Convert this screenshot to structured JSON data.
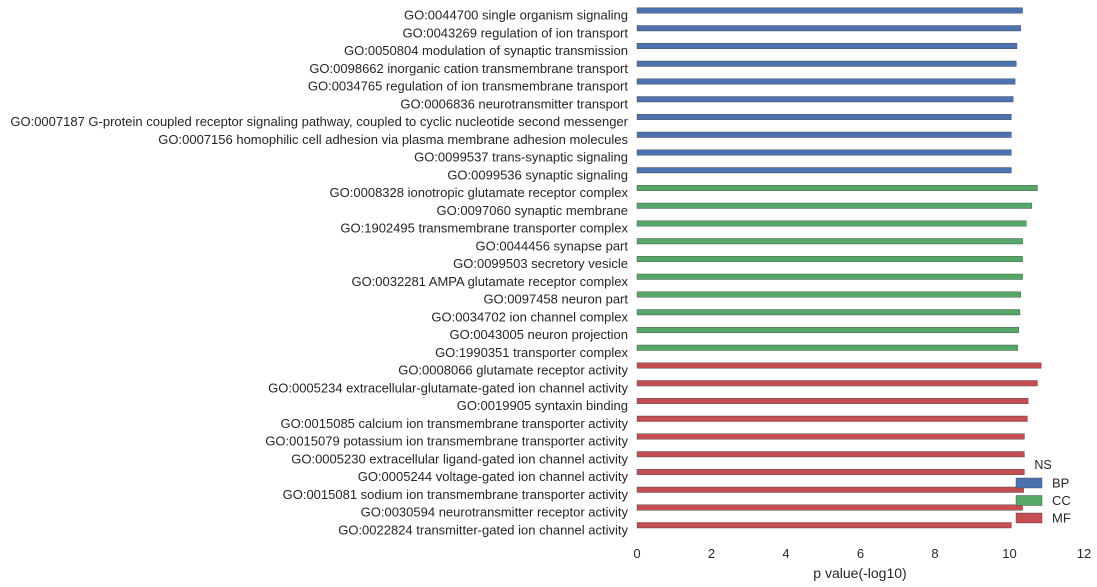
{
  "chart_data": {
    "type": "bar",
    "orientation": "horizontal",
    "xlabel": "p value(-log10)",
    "ylabel": "",
    "xlim": [
      0,
      12
    ],
    "xticks": [
      0,
      2,
      4,
      6,
      8,
      10,
      12
    ],
    "grid": false,
    "legend": {
      "title": "NS",
      "placement": "bottom-right",
      "entries": [
        {
          "label": "BP",
          "color": "#4c72b0"
        },
        {
          "label": "CC",
          "color": "#55a868"
        },
        {
          "label": "MF",
          "color": "#c44e52"
        }
      ]
    },
    "bars": [
      {
        "label": "GO:0044700 single organism signaling",
        "value": 10.35,
        "group": "BP"
      },
      {
        "label": "GO:0043269 regulation of ion transport",
        "value": 10.3,
        "group": "BP"
      },
      {
        "label": "GO:0050804 modulation of synaptic transmission",
        "value": 10.2,
        "group": "BP"
      },
      {
        "label": "GO:0098662 inorganic cation transmembrane transport",
        "value": 10.18,
        "group": "BP"
      },
      {
        "label": "GO:0034765 regulation of ion transmembrane transport",
        "value": 10.15,
        "group": "BP"
      },
      {
        "label": "GO:0006836 neurotransmitter transport",
        "value": 10.1,
        "group": "BP"
      },
      {
        "label": "GO:0007187 G-protein coupled receptor signaling pathway, coupled to cyclic nucleotide second messenger",
        "value": 10.05,
        "group": "BP"
      },
      {
        "label": "GO:0007156 homophilic cell adhesion via plasma membrane adhesion molecules",
        "value": 10.05,
        "group": "BP"
      },
      {
        "label": "GO:0099537 trans-synaptic signaling",
        "value": 10.05,
        "group": "BP"
      },
      {
        "label": "GO:0099536 synaptic signaling",
        "value": 10.05,
        "group": "BP"
      },
      {
        "label": "GO:0008328 ionotropic glutamate receptor complex",
        "value": 10.75,
        "group": "CC"
      },
      {
        "label": "GO:0097060 synaptic membrane",
        "value": 10.6,
        "group": "CC"
      },
      {
        "label": "GO:1902495 transmembrane transporter complex",
        "value": 10.45,
        "group": "CC"
      },
      {
        "label": "GO:0044456 synapse part",
        "value": 10.35,
        "group": "CC"
      },
      {
        "label": "GO:0099503 secretory vesicle",
        "value": 10.35,
        "group": "CC"
      },
      {
        "label": "GO:0032281 AMPA glutamate receptor complex",
        "value": 10.35,
        "group": "CC"
      },
      {
        "label": "GO:0097458 neuron part",
        "value": 10.3,
        "group": "CC"
      },
      {
        "label": "GO:0034702 ion channel complex",
        "value": 10.28,
        "group": "CC"
      },
      {
        "label": "GO:0043005 neuron projection",
        "value": 10.25,
        "group": "CC"
      },
      {
        "label": "GO:1990351 transporter complex",
        "value": 10.22,
        "group": "CC"
      },
      {
        "label": "GO:0008066 glutamate receptor activity",
        "value": 10.85,
        "group": "MF"
      },
      {
        "label": "GO:0005234 extracellular-glutamate-gated ion channel activity",
        "value": 10.75,
        "group": "MF"
      },
      {
        "label": "GO:0019905 syntaxin binding",
        "value": 10.5,
        "group": "MF"
      },
      {
        "label": "GO:0015085 calcium ion transmembrane transporter activity",
        "value": 10.48,
        "group": "MF"
      },
      {
        "label": "GO:0015079 potassium ion transmembrane transporter activity",
        "value": 10.4,
        "group": "MF"
      },
      {
        "label": "GO:0005230 extracellular ligand-gated ion channel activity",
        "value": 10.4,
        "group": "MF"
      },
      {
        "label": "GO:0005244 voltage-gated ion channel activity",
        "value": 10.4,
        "group": "MF"
      },
      {
        "label": "GO:0015081 sodium ion transmembrane transporter activity",
        "value": 10.38,
        "group": "MF"
      },
      {
        "label": "GO:0030594 neurotransmitter receptor activity",
        "value": 10.35,
        "group": "MF"
      },
      {
        "label": "GO:0022824 transmitter-gated ion channel activity",
        "value": 10.05,
        "group": "MF"
      }
    ]
  }
}
